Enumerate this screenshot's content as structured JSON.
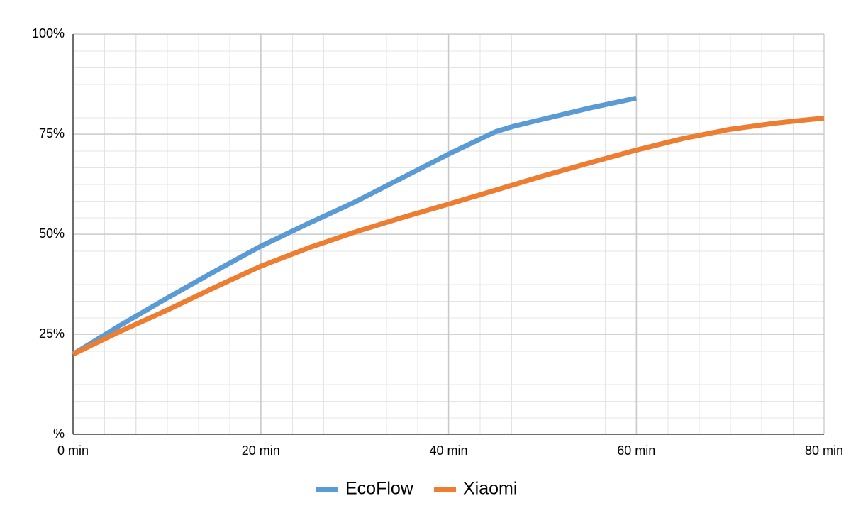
{
  "chart_data": {
    "type": "line",
    "xlim": [
      0,
      80
    ],
    "xticks": [
      {
        "value": 0,
        "label": "0 min"
      },
      {
        "value": 20,
        "label": "20 min"
      },
      {
        "value": 40,
        "label": "40 min"
      },
      {
        "value": 60,
        "label": "60 min"
      },
      {
        "value": 80,
        "label": "80 min"
      }
    ],
    "ylim": [
      0,
      100
    ],
    "yticks": [
      {
        "value": 0,
        "label": "%"
      },
      {
        "value": 25,
        "label": "25%"
      },
      {
        "value": 50,
        "label": "50%"
      },
      {
        "value": 75,
        "label": "75%"
      },
      {
        "value": 100,
        "label": "100%"
      }
    ],
    "grid": true,
    "legend": "bottom",
    "series": [
      {
        "name": "EcoFlow",
        "color": "#5b9bd5",
        "x": [
          0,
          5,
          10,
          15,
          20,
          25,
          30,
          35,
          40,
          45,
          47,
          50,
          55,
          60
        ],
        "values": [
          20,
          27.2,
          34,
          40.6,
          47,
          52.6,
          58,
          64,
          70,
          75.6,
          77,
          78.7,
          81.5,
          84
        ]
      },
      {
        "name": "Xiaomi",
        "color": "#ed7d31",
        "x": [
          0,
          5,
          10,
          15,
          20,
          25,
          30,
          35,
          40,
          45,
          50,
          55,
          60,
          65,
          70,
          75,
          80
        ],
        "values": [
          20,
          25.7,
          31,
          36.6,
          42,
          46.5,
          50.5,
          54.1,
          57.5,
          61,
          64.5,
          67.8,
          71,
          73.9,
          76.2,
          77.8,
          79
        ]
      }
    ]
  }
}
